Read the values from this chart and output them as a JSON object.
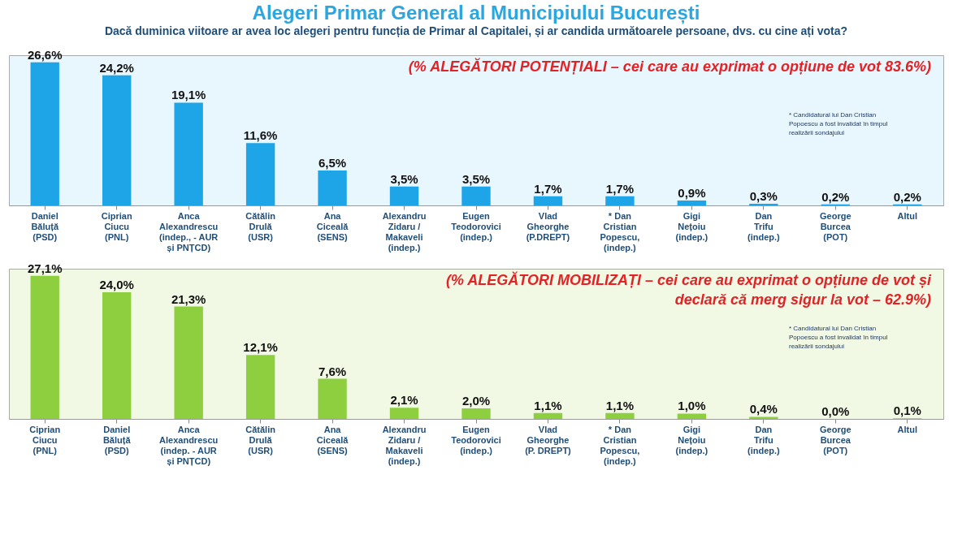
{
  "chart_data": [
    {
      "type": "bar",
      "title": "Alegeri Primar General al Municipiului București",
      "subtitle": "Dacă duminica viitoare ar avea loc alegeri pentru funcția de Primar al Capitalei, și ar candida următoarele persoane, dvs. cu cine ați vota?",
      "categories": [
        "Daniel\nBăluță\n(PSD)",
        "Ciprian\nCiucu\n(PNL)",
        "Anca\nAlexandrescu\n(indep., - AUR\nși PNȚCD)",
        "Cătălin\nDrulă\n(USR)",
        "Ana\nCiceală\n(SENS)",
        "Alexandru\nZidaru /\nMakaveli\n(indep.)",
        "Eugen\nTeodorovici\n(indep.)",
        "Vlad\nGheorghe\n(P.DREPT)",
        "* Dan\nCristian\nPopescu,\n(indep.)",
        "Gigi\nNețoiu\n(indep.)",
        "Dan\nTrifu\n(indep.)",
        "George\nBurcea\n(POT)",
        "Altul"
      ],
      "values": [
        26.6,
        24.2,
        19.1,
        11.6,
        6.5,
        3.5,
        3.5,
        1.7,
        1.7,
        0.9,
        0.3,
        0.2,
        0.2
      ],
      "value_labels": [
        "26,6%",
        "24,2%",
        "19,1%",
        "11,6%",
        "6,5%",
        "3,5%",
        "3,5%",
        "1,7%",
        "1,7%",
        "0,9%",
        "0,3%",
        "0,2%",
        "0,2%"
      ],
      "color": "#1ea5e8",
      "tick_labels": "x",
      "grid": false,
      "annotations": [
        "(% ALEGĂTORI POTENȚIALI – cei care au exprimat o opțiune de vot 83.6%)",
        "* Candidatural lui Dan Cristian\nPopoescu a fost invalidat în timpul\nrealizării sondajului"
      ]
    },
    {
      "type": "bar",
      "categories": [
        "Ciprian\nCiucu\n(PNL)",
        "Daniel\nBăluță\n(PSD)",
        "Anca\nAlexandrescu\n(indep. - AUR\nși PNȚCD)",
        "Cătălin\nDrulă\n(USR)",
        "Ana\nCiceală\n(SENS)",
        "Alexandru\nZidaru /\nMakaveli\n(indep.)",
        "Eugen\nTeodorovici\n(indep.)",
        "Vlad\nGheorghe\n(P. DREPT)",
        "* Dan\nCristian\nPopescu,\n(indep.)",
        "Gigi\nNețoiu\n(indep.)",
        "Dan\nTrifu\n(indep.)",
        "George\nBurcea\n(POT)",
        "Altul"
      ],
      "values": [
        27.1,
        24.0,
        21.3,
        12.1,
        7.6,
        2.1,
        2.0,
        1.1,
        1.1,
        1.0,
        0.4,
        0.0,
        0.1
      ],
      "value_labels": [
        "27,1%",
        "24,0%",
        "21,3%",
        "12,1%",
        "7,6%",
        "2,1%",
        "2,0%",
        "1,1%",
        "1,1%",
        "1,0%",
        "0,4%",
        "0,0%",
        "0,1%"
      ],
      "color": "#8dcf3f",
      "tick_labels": "x",
      "grid": false,
      "annotations": [
        "(% ALEGĂTORI MOBILIZAȚI – cei care au exprimat o opțiune de vot și\ndeclară că merg sigur la vot – 62.9%)",
        "* Candidatural lui Dan Cristian\nPopoescu a fost invalidat în timpul\nrealizării sondajului"
      ]
    }
  ]
}
